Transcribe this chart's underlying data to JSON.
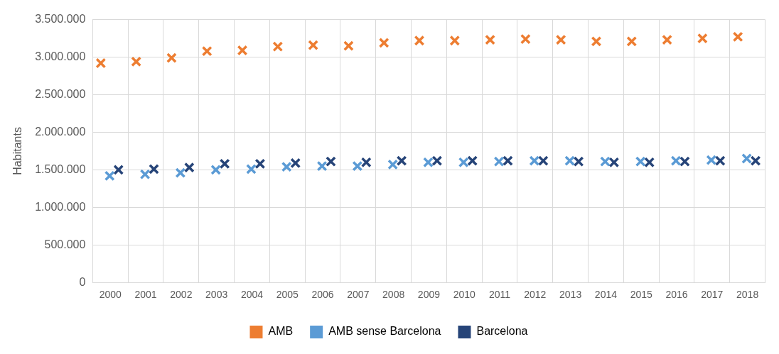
{
  "chart_data": {
    "type": "scatter",
    "ylabel": "Habitants",
    "categories": [
      "2000",
      "2001",
      "2002",
      "2003",
      "2004",
      "2005",
      "2006",
      "2007",
      "2008",
      "2009",
      "2010",
      "2011",
      "2012",
      "2013",
      "2014",
      "2015",
      "2016",
      "2017",
      "2018"
    ],
    "series": [
      {
        "name": "AMB",
        "color": "#ed7d31",
        "values": [
          2920000,
          2940000,
          2990000,
          3080000,
          3090000,
          3140000,
          3160000,
          3150000,
          3190000,
          3220000,
          3220000,
          3230000,
          3240000,
          3230000,
          3210000,
          3210000,
          3230000,
          3250000,
          3270000
        ]
      },
      {
        "name": "AMB sense Barcelona",
        "color": "#5b9bd5",
        "values": [
          1420000,
          1440000,
          1460000,
          1500000,
          1510000,
          1540000,
          1550000,
          1550000,
          1570000,
          1600000,
          1600000,
          1610000,
          1620000,
          1620000,
          1610000,
          1610000,
          1620000,
          1630000,
          1650000
        ]
      },
      {
        "name": "Barcelona",
        "color": "#264478",
        "values": [
          1500000,
          1510000,
          1530000,
          1580000,
          1580000,
          1590000,
          1610000,
          1600000,
          1620000,
          1620000,
          1620000,
          1620000,
          1620000,
          1610000,
          1600000,
          1600000,
          1610000,
          1620000,
          1620000
        ]
      }
    ],
    "ylim": [
      0,
      3500000
    ],
    "yticks": [
      0,
      {
        "value": 500000,
        "label": "500.000"
      },
      {
        "value": 1000000,
        "label": "1.000.000"
      },
      {
        "value": 1500000,
        "label": "1.500.000"
      },
      {
        "value": 2000000,
        "label": "2.000.000"
      },
      {
        "value": 2500000,
        "label": "2.500.000"
      },
      {
        "value": 3000000,
        "label": "3.000.000"
      },
      {
        "value": 3500000,
        "label": "3.500.000"
      }
    ],
    "grid": true,
    "legend": "bottom",
    "marker": "cross"
  }
}
